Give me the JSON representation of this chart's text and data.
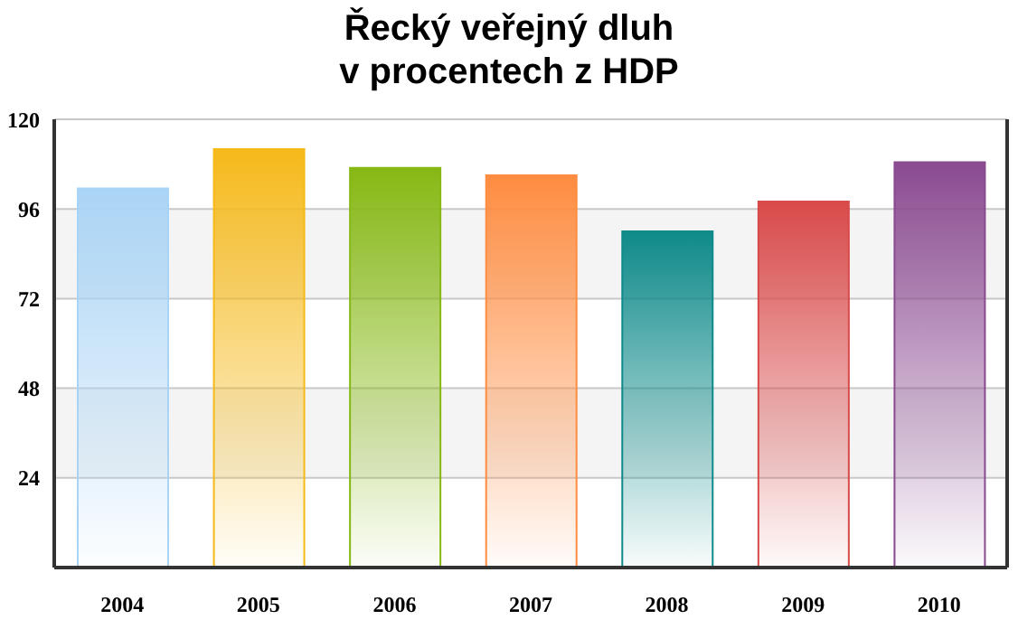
{
  "chart_data": {
    "type": "bar",
    "title": "Řecký veřejný dluh\nv procentech z HDP",
    "categories": [
      "2004",
      "2005",
      "2006",
      "2007",
      "2008",
      "2009",
      "2010"
    ],
    "values": [
      101.5,
      112,
      107,
      105,
      90,
      98,
      108.5
    ],
    "colors": [
      "#aad4f5",
      "#f5b91a",
      "#86b814",
      "#ff8c40",
      "#0f8a8a",
      "#d94a4a",
      "#8a4a90"
    ],
    "ylim": [
      0,
      120
    ],
    "yticks": [
      24,
      48,
      72,
      96,
      120
    ],
    "grid": "y"
  }
}
